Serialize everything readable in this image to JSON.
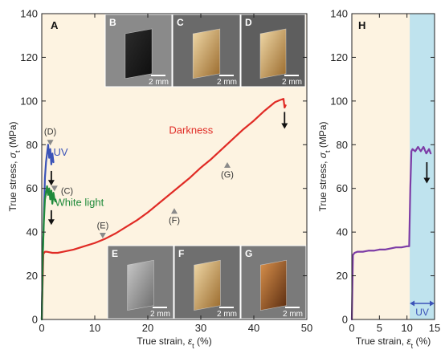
{
  "chart_data": [
    {
      "panel": "A",
      "type": "line",
      "xlabel_main": "True strain, ",
      "xlabel_sym": "ε",
      "xlabel_sub": "t",
      "xlabel_unit": " (%)",
      "ylabel_main": "True stress, ",
      "ylabel_sym": "σ",
      "ylabel_sub": "t",
      "ylabel_unit": " (MPa)",
      "xlim": [
        0,
        50
      ],
      "ylim": [
        0,
        140
      ],
      "xticks": [
        0,
        10,
        20,
        30,
        40,
        50
      ],
      "yticks": [
        0,
        20,
        40,
        60,
        80,
        100,
        120,
        140
      ],
      "background": "#fdf3e1",
      "series": [
        {
          "name": "Darkness",
          "color": "#e02b25",
          "x": [
            0,
            0.3,
            0.6,
            1,
            2,
            3,
            4,
            6,
            8,
            10,
            12,
            14,
            16,
            18,
            20,
            22,
            24,
            26,
            28,
            30,
            32,
            34,
            36,
            38,
            40,
            42,
            44,
            45,
            45.6,
            45.8,
            46
          ],
          "y": [
            0,
            30,
            31,
            31,
            30.5,
            30.5,
            31,
            32,
            33.5,
            35,
            37,
            39.5,
            42.5,
            45.5,
            49,
            53,
            57,
            61,
            65,
            69.5,
            73.5,
            78,
            82.5,
            87,
            91,
            95.5,
            99.5,
            100.5,
            101,
            97,
            98
          ]
        },
        {
          "name": "UV",
          "color": "#3b53b8",
          "x": [
            0,
            0.2,
            0.4,
            0.6,
            0.8,
            1.0,
            1.2,
            1.4,
            1.6,
            1.8,
            2.0,
            2.2
          ],
          "y": [
            0,
            30,
            48,
            65,
            72,
            76,
            80,
            74,
            78,
            71,
            76,
            72
          ]
        },
        {
          "name": "White light",
          "color": "#1f8a3a",
          "x": [
            0,
            0.2,
            0.4,
            0.6,
            0.8,
            1.0,
            1.2,
            1.4,
            1.6,
            1.8,
            2.0,
            2.2,
            2.4,
            2.6
          ],
          "y": [
            0,
            30,
            45,
            55,
            58,
            61,
            57,
            60,
            55,
            59,
            53,
            58,
            55,
            54
          ]
        }
      ],
      "legend_labels": [
        {
          "text": "Darkness",
          "color": "#e02b25",
          "x": 24,
          "y": 85
        },
        {
          "text": "UV",
          "color": "#3b53b8",
          "x": 2.2,
          "y": 75
        },
        {
          "text": "White light",
          "color": "#1f8a3a",
          "x": 2.5,
          "y": 52
        }
      ],
      "markers": [
        {
          "label": "(D)",
          "x": 1.6,
          "y": 80,
          "lx": 1.6,
          "ly": 84
        },
        {
          "label": "(C)",
          "x": 2.4,
          "y": 59,
          "lx": 2.4,
          "ly": 59
        },
        {
          "label": "(E)",
          "x": 11.5,
          "y": 37.5,
          "lx": 11.5,
          "ly": 41
        },
        {
          "label": "(F)",
          "x": 25,
          "y": 51,
          "lx": 25,
          "ly": 44
        },
        {
          "label": "(G)",
          "x": 35,
          "y": 72,
          "lx": 35,
          "ly": 65
        }
      ],
      "arrows": [
        {
          "x": 1.8,
          "y1": 68,
          "y2": 62
        },
        {
          "x": 1.8,
          "y1": 50,
          "y2": 44
        },
        {
          "x": 45.8,
          "y1": 95,
          "y2": 88
        }
      ],
      "insets": [
        {
          "label": "B",
          "scale": "2 mm"
        },
        {
          "label": "C",
          "scale": "2 mm"
        },
        {
          "label": "D",
          "scale": "2 mm"
        },
        {
          "label": "E",
          "scale": "2 mm"
        },
        {
          "label": "F",
          "scale": "2 mm"
        },
        {
          "label": "G",
          "scale": "2 mm"
        }
      ]
    },
    {
      "panel": "H",
      "type": "line",
      "xlabel_main": "True strain, ",
      "xlabel_sym": "ε",
      "xlabel_sub": "t",
      "xlabel_unit": " (%)",
      "ylabel_main": "True stress, ",
      "ylabel_sym": "σ",
      "ylabel_sub": "t",
      "ylabel_unit": " (MPa)",
      "xlim": [
        0,
        15
      ],
      "ylim": [
        0,
        140
      ],
      "xticks": [
        0,
        5,
        10,
        15
      ],
      "yticks": [
        0,
        20,
        40,
        60,
        80,
        100,
        120,
        140
      ],
      "background": "#fdf3e1",
      "uv_region": {
        "x0": 10.5,
        "x1": 15,
        "color": "#bfe3ee",
        "label": "UV"
      },
      "series": [
        {
          "name": "",
          "color": "#7d3ca6",
          "x": [
            0,
            0.2,
            0.5,
            1,
            2,
            3,
            4,
            5,
            6,
            7,
            8,
            9,
            10,
            10.4,
            10.6,
            10.8,
            11,
            11.5,
            12,
            12.5,
            13,
            13.5,
            14,
            14.3
          ],
          "y": [
            0,
            29.5,
            30.5,
            31,
            31,
            31.5,
            31.5,
            32,
            32,
            32.5,
            33,
            33,
            33.5,
            33.5,
            60,
            77,
            78,
            77,
            79,
            77,
            79,
            76,
            78,
            76
          ]
        }
      ],
      "arrows": [
        {
          "x": 13.6,
          "y1": 72,
          "y2": 63
        }
      ]
    }
  ]
}
